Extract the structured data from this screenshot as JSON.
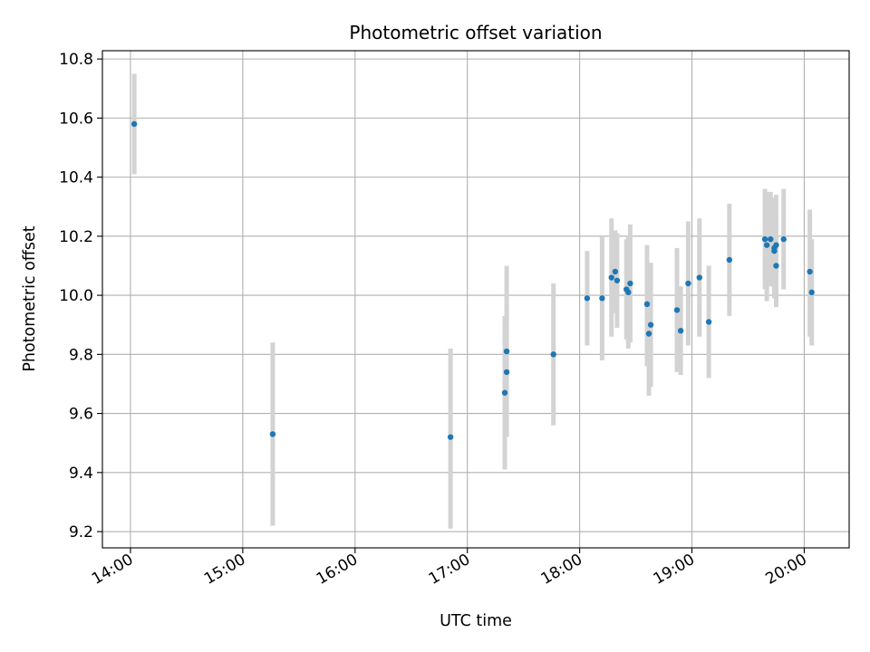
{
  "chart_data": {
    "type": "scatter",
    "title": "Photometric offset variation",
    "xlabel": "UTC time",
    "ylabel": "Photometric offset",
    "xlim": [
      "13:45",
      "20:24"
    ],
    "ylim": [
      9.145,
      10.828
    ],
    "grid": true,
    "x_ticks": [
      "14:00",
      "15:00",
      "16:00",
      "17:00",
      "18:00",
      "19:00",
      "20:00"
    ],
    "y_ticks": [
      "9.2",
      "9.4",
      "9.6",
      "9.8",
      "10.0",
      "10.2",
      "10.4",
      "10.6",
      "10.8"
    ],
    "colors": {
      "points": "#1f77b4",
      "error_bars": "#d3d3d3",
      "grid": "#b0b0b0"
    },
    "points": [
      {
        "t": "14:02",
        "y": 10.58,
        "lo": 10.41,
        "hi": 10.75
      },
      {
        "t": "15:16",
        "y": 9.53,
        "lo": 9.22,
        "hi": 9.84
      },
      {
        "t": "16:51",
        "y": 9.52,
        "lo": 9.21,
        "hi": 9.82
      },
      {
        "t": "17:20",
        "y": 9.67,
        "lo": 9.41,
        "hi": 9.93
      },
      {
        "t": "17:21",
        "y": 9.81,
        "lo": 9.52,
        "hi": 10.1
      },
      {
        "t": "17:21",
        "y": 9.74,
        "lo": 9.53,
        "hi": 9.95
      },
      {
        "t": "17:46",
        "y": 9.8,
        "lo": 9.56,
        "hi": 10.04
      },
      {
        "t": "18:04",
        "y": 9.99,
        "lo": 9.83,
        "hi": 10.15
      },
      {
        "t": "18:12",
        "y": 9.99,
        "lo": 9.78,
        "hi": 10.2
      },
      {
        "t": "18:17",
        "y": 10.06,
        "lo": 9.86,
        "hi": 10.26
      },
      {
        "t": "18:19",
        "y": 10.08,
        "lo": 9.94,
        "hi": 10.22
      },
      {
        "t": "18:20",
        "y": 10.05,
        "lo": 9.89,
        "hi": 10.21
      },
      {
        "t": "18:25",
        "y": 10.02,
        "lo": 9.85,
        "hi": 10.19
      },
      {
        "t": "18:26",
        "y": 10.01,
        "lo": 9.82,
        "hi": 10.2
      },
      {
        "t": "18:27",
        "y": 10.04,
        "lo": 9.84,
        "hi": 10.24
      },
      {
        "t": "18:36",
        "y": 9.97,
        "lo": 9.76,
        "hi": 10.17
      },
      {
        "t": "18:37",
        "y": 9.87,
        "lo": 9.66,
        "hi": 10.08
      },
      {
        "t": "18:38",
        "y": 9.9,
        "lo": 9.69,
        "hi": 10.11
      },
      {
        "t": "18:52",
        "y": 9.95,
        "lo": 9.74,
        "hi": 10.16
      },
      {
        "t": "18:54",
        "y": 9.88,
        "lo": 9.73,
        "hi": 10.03
      },
      {
        "t": "18:58",
        "y": 10.04,
        "lo": 9.83,
        "hi": 10.25
      },
      {
        "t": "19:04",
        "y": 10.06,
        "lo": 9.86,
        "hi": 10.26
      },
      {
        "t": "19:09",
        "y": 9.91,
        "lo": 9.72,
        "hi": 10.1
      },
      {
        "t": "19:20",
        "y": 10.12,
        "lo": 9.93,
        "hi": 10.31
      },
      {
        "t": "19:39",
        "y": 10.19,
        "lo": 10.02,
        "hi": 10.36
      },
      {
        "t": "19:40",
        "y": 10.17,
        "lo": 9.98,
        "hi": 10.35
      },
      {
        "t": "19:42",
        "y": 10.19,
        "lo": 10.03,
        "hi": 10.35
      },
      {
        "t": "19:44",
        "y": 10.16,
        "lo": 10.0,
        "hi": 10.32
      },
      {
        "t": "19:44",
        "y": 10.15,
        "lo": 9.99,
        "hi": 10.33
      },
      {
        "t": "19:45",
        "y": 10.17,
        "lo": 9.98,
        "hi": 10.34
      },
      {
        "t": "19:45",
        "y": 10.1,
        "lo": 9.96,
        "hi": 10.26
      },
      {
        "t": "19:49",
        "y": 10.19,
        "lo": 10.02,
        "hi": 10.36
      },
      {
        "t": "20:03",
        "y": 10.08,
        "lo": 9.86,
        "hi": 10.29
      },
      {
        "t": "20:04",
        "y": 10.01,
        "lo": 9.83,
        "hi": 10.19
      }
    ]
  }
}
